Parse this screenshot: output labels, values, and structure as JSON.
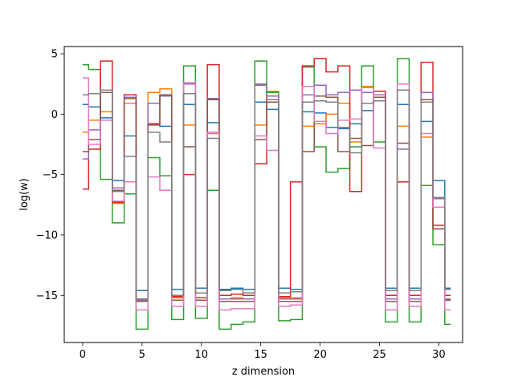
{
  "chart_data": {
    "type": "line",
    "drawstyle": "steps-mid",
    "title": "",
    "xlabel": "z dimension",
    "ylabel": "log(w)",
    "xlim": [
      -1.55,
      32.0
    ],
    "ylim": [
      -18.9,
      5.6
    ],
    "xticks": [
      0,
      5,
      10,
      15,
      20,
      25,
      30
    ],
    "yticks": [
      5,
      0,
      -5,
      -10,
      -15
    ],
    "grid": false,
    "legend": "none",
    "series": [
      {
        "color": "#1f77b4",
        "values": [
          0.8,
          0.6,
          -0.3,
          -5.5,
          -1.8,
          -14.6,
          -0.8,
          -1.0,
          -14.5,
          0.8,
          -14.4,
          -0.7,
          -14.5,
          -14.4,
          -14.5,
          1.0,
          0.4,
          -14.4,
          -14.5,
          0.2,
          0.1,
          -1.1,
          -1.2,
          -0.8,
          0.3,
          1.4,
          -14.4,
          0.8,
          -14.4,
          -0.6,
          -5.5,
          -14.4
        ]
      },
      {
        "color": "#ff7f0e",
        "values": [
          -1.5,
          -0.5,
          0.2,
          -7.4,
          0.9,
          -15.3,
          1.8,
          2.1,
          -15.2,
          -0.9,
          -15.2,
          -1.6,
          -15.3,
          -15.2,
          -15.3,
          -0.9,
          1.9,
          -15.2,
          -15.2,
          -1.0,
          -0.8,
          0.0,
          0.9,
          -2.3,
          2.3,
          1.6,
          -15.3,
          -1.0,
          -15.3,
          -1.9,
          -9.5,
          -15.3
        ]
      },
      {
        "color": "#2ca02c",
        "values": [
          4.1,
          3.7,
          -5.4,
          -9.0,
          -6.6,
          -17.8,
          -3.6,
          -5.1,
          -17.0,
          4.0,
          -16.9,
          -6.3,
          -17.8,
          -17.4,
          -17.2,
          4.4,
          1.8,
          -17.1,
          -17.0,
          3.9,
          -2.7,
          -4.8,
          -4.5,
          -2.7,
          4.0,
          -2.3,
          -17.2,
          4.6,
          -17.2,
          -5.9,
          -10.8,
          -17.4
        ]
      },
      {
        "color": "#d62728",
        "values": [
          -6.2,
          -2.9,
          4.4,
          -7.3,
          1.6,
          -15.5,
          -0.8,
          1.6,
          -15.1,
          -5.0,
          -15.2,
          4.1,
          -15.0,
          -14.9,
          -15.0,
          -4.1,
          1.5,
          -15.1,
          -5.6,
          4.0,
          4.6,
          3.5,
          4.0,
          -6.4,
          1.8,
          1.9,
          -15.0,
          -5.6,
          -15.0,
          4.3,
          -9.2,
          -15.0
        ]
      },
      {
        "color": "#9467bd",
        "values": [
          -3.7,
          -1.3,
          1.8,
          -6.1,
          1.4,
          -15.3,
          0.9,
          1.5,
          -15.4,
          2.5,
          -15.4,
          1.3,
          -15.3,
          -15.3,
          -15.3,
          2.4,
          1.5,
          -15.3,
          -15.3,
          1.6,
          2.4,
          1.6,
          1.8,
          2.0,
          1.8,
          1.6,
          -15.3,
          -2.9,
          -15.3,
          1.8,
          -7.0,
          -15.3
        ]
      },
      {
        "color": "#8c564b",
        "values": [
          -3.1,
          -2.1,
          1.8,
          -6.3,
          1.3,
          -15.5,
          -0.9,
          1.6,
          -15.4,
          -2.7,
          -15.4,
          1.2,
          -15.5,
          -15.5,
          -15.5,
          -2.1,
          1.0,
          -15.5,
          -15.5,
          -3.1,
          1.5,
          1.4,
          -3.1,
          -2.0,
          -2.6,
          1.4,
          -15.5,
          -2.4,
          -15.5,
          1.2,
          -9.5,
          -15.4
        ]
      },
      {
        "color": "#e377c2",
        "values": [
          3.0,
          -2.5,
          -0.5,
          -7.2,
          -5.6,
          -16.2,
          -5.2,
          -6.3,
          -15.9,
          2.6,
          -15.9,
          -1.5,
          -16.2,
          -16.1,
          -16.1,
          -1.8,
          -3.0,
          -15.9,
          -15.8,
          2.3,
          -0.6,
          -1.6,
          -0.5,
          -0.4,
          2.2,
          -2.8,
          -16.2,
          2.5,
          -15.9,
          -1.6,
          -7.7,
          -16.2
        ]
      },
      {
        "color": "#7f7f7f",
        "values": [
          1.6,
          1.7,
          2.0,
          -6.4,
          -3.5,
          -15.4,
          -1.5,
          -2.3,
          -15.0,
          1.7,
          -14.8,
          -2.0,
          -14.6,
          -14.5,
          -14.8,
          2.5,
          1.2,
          -14.8,
          -14.7,
          1.0,
          1.1,
          1.0,
          -1.1,
          -3.2,
          0.9,
          1.1,
          -14.6,
          2.0,
          -14.6,
          1.0,
          -6.9,
          -14.5
        ]
      }
    ]
  }
}
